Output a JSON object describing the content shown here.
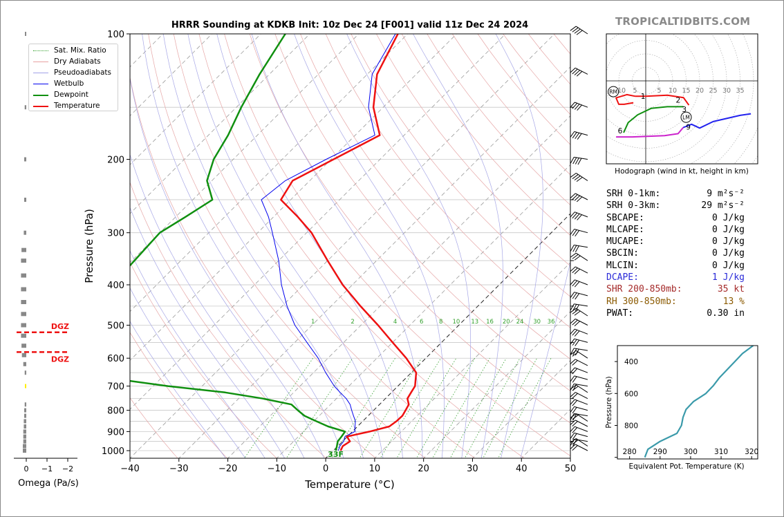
{
  "main_title": "HRRR Sounding at KDKB Init: 10z Dec 24 [F001] valid 11z Dec 24 2024",
  "brand": "TROPICALTIDBITS.COM",
  "skewt": {
    "xlabel": "Temperature (°C)",
    "ylabel": "Pressure (hPa)",
    "x_ticks": [
      "−40",
      "−30",
      "−20",
      "−10",
      "0",
      "10",
      "20",
      "30",
      "40",
      "50"
    ],
    "y_ticks": [
      "100",
      "200",
      "300",
      "400",
      "500",
      "600",
      "700",
      "800",
      "900",
      "1000"
    ],
    "mixing_ratio_labels": [
      "1",
      "2",
      "4",
      "6",
      "8",
      "10",
      "13",
      "16",
      "20",
      "24",
      "30",
      "36"
    ],
    "surface_temp_label": "33F"
  },
  "legend": {
    "items": [
      {
        "label": "Sat. Mix. Ratio",
        "color": "#33a02c",
        "style": "dotted"
      },
      {
        "label": "Dry Adiabats",
        "color": "#e8a0a0",
        "style": "solid"
      },
      {
        "label": "Pseudoadiabats",
        "color": "#a0a0e8",
        "style": "solid"
      },
      {
        "label": "Wetbulb",
        "color": "#0000ee",
        "style": "solid"
      },
      {
        "label": "Dewpoint",
        "color": "#109010",
        "style": "thick"
      },
      {
        "label": "Temperature",
        "color": "#ee1111",
        "style": "thick"
      }
    ]
  },
  "omega": {
    "xlabel": "Omega (Pa/s)",
    "x_ticks": [
      "0",
      "−1",
      "−2"
    ],
    "dgz_label": "DGZ"
  },
  "hodograph": {
    "caption": "Hodograph (wind in kt, height in km)",
    "ring_labels": [
      "10",
      "5",
      "5",
      "10",
      "15",
      "20",
      "25",
      "30",
      "35"
    ],
    "marker_labels": [
      "1",
      "2",
      "3",
      "6",
      "9"
    ],
    "rm_label": "RM",
    "lm_label": "LM"
  },
  "stats": [
    {
      "key": "SRH 0-1km:",
      "value": "9 m²s⁻²",
      "color": "#000000"
    },
    {
      "key": "SRH 0-3km:",
      "value": "29 m²s⁻²",
      "color": "#000000"
    },
    {
      "key": "SBCAPE:",
      "value": "0 J/kg",
      "color": "#000000"
    },
    {
      "key": "MLCAPE:",
      "value": "0 J/kg",
      "color": "#000000"
    },
    {
      "key": "MUCAPE:",
      "value": "0 J/kg",
      "color": "#000000"
    },
    {
      "key": "SBCIN:",
      "value": "0 J/kg",
      "color": "#000000"
    },
    {
      "key": "MLCIN:",
      "value": "0 J/kg",
      "color": "#000000"
    },
    {
      "key": "DCAPE:",
      "value": "1 J/kg",
      "color": "#2a2ad8"
    },
    {
      "key": "SHR 200-850mb:",
      "value": "35 kt",
      "color": "#a52a2a"
    },
    {
      "key": "RH 300-850mb:",
      "value": "13 %",
      "color": "#8b5a00"
    },
    {
      "key": "PWAT:",
      "value": "0.30 in",
      "color": "#000000"
    }
  ],
  "theta_e": {
    "xlabel": "Equivalent Pot. Temperature (K)",
    "ylabel": "Pressure (hPa)",
    "x_ticks": [
      "280",
      "290",
      "300",
      "310",
      "320"
    ],
    "y_ticks": [
      "400",
      "600",
      "800"
    ]
  },
  "chart_data": [
    {
      "type": "line",
      "title": "HRRR Sounding at KDKB Init: 10z Dec 24 [F001] valid 11z Dec 24 2024",
      "xlabel": "Temperature (°C)",
      "ylabel": "Pressure (hPa)",
      "xlim": [
        -40,
        50
      ],
      "ylim": [
        1050,
        100
      ],
      "y_scale": "log",
      "skew": "45°",
      "grid": true,
      "legend_position": "top-left",
      "series": [
        {
          "name": "Temperature",
          "color": "#ee1111",
          "pressure": [
            1000,
            975,
            950,
            925,
            900,
            875,
            850,
            825,
            800,
            775,
            750,
            725,
            700,
            650,
            600,
            550,
            500,
            450,
            400,
            350,
            300,
            275,
            250,
            225,
            200,
            175,
            150,
            125,
            100
          ],
          "temperature": [
            1.5,
            1.0,
            1.5,
            -0.1,
            3.5,
            6.5,
            6.9,
            7.0,
            6.5,
            6.0,
            4.5,
            4.0,
            3.5,
            1.0,
            -4.0,
            -10.0,
            -16.5,
            -24.0,
            -32.0,
            -40.0,
            -49.0,
            -55.0,
            -62.0,
            -63.5,
            -59.5,
            -55.0,
            -62.0,
            -68.0,
            -72.0
          ]
        },
        {
          "name": "Dewpoint",
          "color": "#109010",
          "pressure": [
            1000,
            975,
            950,
            925,
            900,
            875,
            850,
            825,
            800,
            775,
            750,
            725,
            700,
            650,
            600,
            550,
            500,
            450,
            400,
            350,
            300,
            275,
            250,
            225,
            200,
            175,
            150,
            125,
            100
          ],
          "temperature": [
            0.5,
            -0.2,
            -1.0,
            -1.2,
            -1.5,
            -6.0,
            -9.5,
            -13.0,
            -15.5,
            -18.0,
            -25.0,
            -34.0,
            -47.0,
            -70.0,
            -75.0,
            -77.0,
            -78.0,
            -78.5,
            -79.0,
            -79.5,
            -80.0,
            -78.0,
            -76.0,
            -81.0,
            -84.0,
            -86.0,
            -89.0,
            -92.0,
            -95.0
          ]
        },
        {
          "name": "Wetbulb",
          "color": "#0000ee",
          "pressure": [
            1000,
            975,
            950,
            925,
            900,
            875,
            850,
            825,
            800,
            775,
            750,
            725,
            700,
            650,
            600,
            550,
            500,
            450,
            400,
            350,
            300,
            275,
            250,
            225,
            200,
            175,
            150,
            125,
            100
          ],
          "temperature": [
            1.0,
            0.4,
            0.2,
            -0.5,
            0.5,
            -0.5,
            -1.5,
            -3.0,
            -4.5,
            -6.0,
            -8.0,
            -10.5,
            -13.0,
            -17.5,
            -22.0,
            -27.5,
            -33.5,
            -39.0,
            -44.5,
            -50.0,
            -57.0,
            -61.0,
            -66.0,
            -65.0,
            -61.0,
            -56.0,
            -63.0,
            -69.0,
            -72.5
          ]
        }
      ]
    },
    {
      "type": "bar",
      "title": "",
      "xlabel": "Omega (Pa/s)",
      "ylabel": "",
      "xlim": [
        0.2,
        -2.2
      ],
      "grid": false,
      "series": [
        {
          "name": "",
          "pressure": [
            1000,
            975,
            950,
            925,
            900,
            875,
            850,
            825,
            800,
            775,
            700,
            650,
            620,
            590,
            560,
            530,
            500,
            470,
            440,
            410,
            380,
            350,
            330,
            300,
            250,
            200,
            150,
            100
          ],
          "omega": [
            0.06,
            0.06,
            0.05,
            0.05,
            0.05,
            0.04,
            0.04,
            0.03,
            0.03,
            0.02,
            0.0,
            0.02,
            0.05,
            0.08,
            0.09,
            0.1,
            0.1,
            0.1,
            0.1,
            0.1,
            0.1,
            0.1,
            0.09,
            0.04,
            0.03,
            0.03,
            0.02,
            0.01
          ]
        }
      ],
      "dgz_pressure": [
        520,
        580
      ]
    },
    {
      "type": "line",
      "title": "",
      "xlabel": "Equivalent Pot. Temperature (K)",
      "ylabel": "Pressure (hPa)",
      "xlim": [
        276,
        322
      ],
      "ylim": [
        1010,
        300
      ],
      "grid": false,
      "series": [
        {
          "name": "",
          "color": "#3a9aaa",
          "pressure": [
            1000,
            975,
            950,
            900,
            850,
            800,
            750,
            700,
            650,
            600,
            550,
            500,
            450,
            400,
            350,
            300
          ],
          "theta_e": [
            285.0,
            285.5,
            286.0,
            290.0,
            295.5,
            297.0,
            297.5,
            298.5,
            301.0,
            305.0,
            307.5,
            309.5,
            312.0,
            314.5,
            317.0,
            320.5
          ]
        }
      ]
    },
    {
      "type": "line",
      "title": "",
      "xlabel": "Hodograph (wind in kt, height in km)",
      "ylabel": "",
      "xlim": [
        -15,
        40
      ],
      "ylim": [
        -30,
        10
      ],
      "grid": true,
      "series": [
        {
          "name": "0-1km",
          "color": "#ee1111",
          "u": [
            -4.6,
            -8.0,
            -10.0,
            -11.0,
            -7.0,
            -4.0
          ],
          "v": [
            -8.1,
            -8.7,
            -8.7,
            -6.3,
            -5.1,
            -5.7
          ]
        },
        {
          "name": "1-3km",
          "color": "#ee1111",
          "u": [
            -4.0,
            0.0,
            8.0,
            14.0,
            16.0
          ],
          "v": [
            -5.7,
            -5.7,
            -5.3,
            -6.2,
            -9.0
          ]
        },
        {
          "name": "3-6km",
          "color": "#109010",
          "u": [
            14.0,
            8.0,
            2.0,
            -3.0,
            -6.5,
            -8.2
          ],
          "v": [
            -9.6,
            -9.6,
            -10.2,
            -12.6,
            -15.5,
            -19.2
          ]
        },
        {
          "name": "6-9km",
          "color": "#cc22cc",
          "u": [
            -11.0,
            -5.0,
            7.0,
            12.0,
            13.9
          ],
          "v": [
            -20.8,
            -20.8,
            -20.3,
            -19.6,
            -17.3
          ]
        },
        {
          "name": "9+km",
          "color": "#2222ee",
          "u": [
            13.9,
            17.0,
            20.0,
            25.0,
            35.0,
            39.0
          ],
          "v": [
            -17.3,
            -16.1,
            -17.5,
            -15.1,
            -12.8,
            -12.2
          ]
        }
      ],
      "storm_motion": {
        "RM": [
          -12.0,
          -4.0
        ],
        "LM": [
          15.0,
          -13.5
        ]
      }
    }
  ]
}
